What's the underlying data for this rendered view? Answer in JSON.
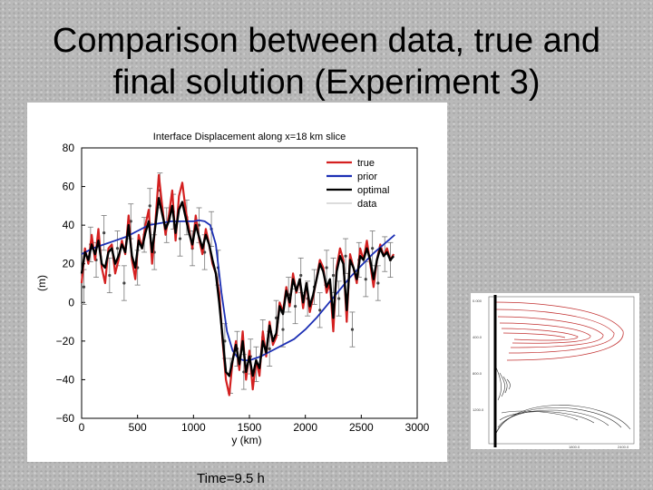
{
  "slide": {
    "title_line1": "Comparison between data, true and",
    "title_line2": "final solution (Experiment 3)",
    "time_label": "Time=9.5 h"
  },
  "chart_data": {
    "type": "line",
    "title": "Interface Displacement along x=18 km slice",
    "xlabel": "y (km)",
    "ylabel": "(m)",
    "xlim": [
      0,
      3000
    ],
    "ylim": [
      -60,
      80
    ],
    "xticks": [
      "0",
      "500",
      "1000",
      "1500",
      "2000",
      "2500",
      "3000"
    ],
    "yticks": [
      "80",
      "60",
      "40",
      "20",
      "0",
      "−20",
      "−40",
      "−60"
    ],
    "legend_position": "top-right",
    "series": [
      {
        "name": "true",
        "color": "#d42020",
        "x": [
          0,
          30,
          60,
          90,
          120,
          150,
          180,
          210,
          240,
          270,
          300,
          330,
          360,
          390,
          420,
          450,
          480,
          510,
          540,
          570,
          600,
          630,
          660,
          690,
          720,
          750,
          780,
          810,
          840,
          870,
          900,
          930,
          960,
          990,
          1020,
          1050,
          1080,
          1110,
          1140,
          1170,
          1200,
          1230,
          1260,
          1290,
          1320,
          1350,
          1380,
          1410,
          1440,
          1470,
          1500,
          1530,
          1560,
          1590,
          1620,
          1650,
          1680,
          1710,
          1740,
          1770,
          1800,
          1830,
          1860,
          1890,
          1920,
          1950,
          1980,
          2010,
          2040,
          2070,
          2100,
          2130,
          2160,
          2190,
          2220,
          2250,
          2280,
          2310,
          2340,
          2370,
          2400,
          2430,
          2460,
          2490,
          2520,
          2550,
          2580,
          2610,
          2640,
          2670,
          2700,
          2730,
          2760,
          2790
        ],
        "values": [
          10,
          28,
          20,
          35,
          22,
          38,
          18,
          10,
          28,
          30,
          15,
          22,
          32,
          25,
          45,
          22,
          12,
          35,
          28,
          40,
          48,
          20,
          42,
          66,
          50,
          35,
          45,
          58,
          32,
          55,
          62,
          48,
          38,
          28,
          45,
          33,
          25,
          38,
          30,
          20,
          15,
          5,
          -20,
          -40,
          -48,
          -30,
          -20,
          -35,
          -15,
          -40,
          -25,
          -45,
          -30,
          -38,
          -15,
          -28,
          -10,
          -22,
          -18,
          0,
          -5,
          8,
          -2,
          15,
          5,
          12,
          -3,
          10,
          -5,
          3,
          12,
          22,
          18,
          5,
          10,
          -15,
          18,
          28,
          22,
          -10,
          25,
          18,
          10,
          28,
          22,
          32,
          20,
          8,
          22,
          30,
          24,
          28,
          22,
          25
        ]
      },
      {
        "name": "prior",
        "color": "#1c2fb4",
        "x": [
          0,
          100,
          200,
          300,
          400,
          500,
          600,
          700,
          800,
          900,
          1000,
          1050,
          1100,
          1150,
          1200,
          1250,
          1300,
          1350,
          1400,
          1450,
          1500,
          1600,
          1700,
          1800,
          1900,
          2000,
          2100,
          2200,
          2300,
          2400,
          2500,
          2600,
          2700,
          2800
        ],
        "values": [
          25,
          28,
          30,
          32,
          34,
          37,
          40,
          41,
          42,
          42,
          42,
          42.5,
          42,
          40,
          30,
          5,
          -15,
          -25,
          -29,
          -30,
          -30,
          -28,
          -25,
          -22,
          -19,
          -14,
          -8,
          -1,
          6,
          13,
          19,
          25,
          30,
          35
        ]
      },
      {
        "name": "optimal",
        "color": "#000000",
        "x": [
          0,
          30,
          60,
          90,
          120,
          150,
          180,
          210,
          240,
          270,
          300,
          330,
          360,
          390,
          420,
          450,
          480,
          510,
          540,
          570,
          600,
          630,
          660,
          690,
          720,
          750,
          780,
          810,
          840,
          870,
          900,
          930,
          960,
          990,
          1020,
          1050,
          1080,
          1110,
          1140,
          1170,
          1200,
          1230,
          1260,
          1290,
          1320,
          1350,
          1380,
          1410,
          1440,
          1470,
          1500,
          1530,
          1560,
          1590,
          1620,
          1650,
          1680,
          1710,
          1740,
          1770,
          1800,
          1830,
          1860,
          1890,
          1920,
          1950,
          1980,
          2010,
          2040,
          2070,
          2100,
          2130,
          2160,
          2190,
          2220,
          2250,
          2280,
          2310,
          2340,
          2370,
          2400,
          2430,
          2460,
          2490,
          2520,
          2550,
          2580,
          2610,
          2640,
          2670,
          2700,
          2730,
          2760,
          2790
        ],
        "values": [
          15,
          26,
          22,
          30,
          25,
          32,
          20,
          18,
          26,
          28,
          20,
          24,
          30,
          26,
          40,
          24,
          18,
          32,
          28,
          36,
          42,
          26,
          40,
          54,
          46,
          38,
          42,
          50,
          36,
          48,
          52,
          44,
          36,
          30,
          40,
          34,
          28,
          35,
          30,
          22,
          15,
          0,
          -18,
          -36,
          -38,
          -30,
          -22,
          -32,
          -20,
          -36,
          -28,
          -38,
          -30,
          -34,
          -20,
          -26,
          -12,
          -20,
          -16,
          -2,
          -6,
          6,
          0,
          12,
          6,
          12,
          0,
          10,
          -2,
          4,
          12,
          20,
          16,
          8,
          12,
          -8,
          16,
          24,
          20,
          -4,
          22,
          18,
          12,
          24,
          22,
          28,
          22,
          12,
          22,
          28,
          24,
          26,
          22,
          24
        ]
      },
      {
        "name": "data",
        "color": "#a0a0a0",
        "x": [
          20,
          80,
          130,
          200,
          250,
          320,
          380,
          440,
          500,
          560,
          610,
          650,
          700,
          760,
          820,
          880,
          940,
          990,
          1050,
          1100,
          1160,
          1220,
          1280,
          1330,
          1390,
          1450,
          1510,
          1560,
          1620,
          1680,
          1740,
          1800,
          1850,
          1910,
          1960,
          2020,
          2080,
          2130,
          2190,
          2250,
          2300,
          2360,
          2420,
          2480,
          2540,
          2600,
          2650,
          2710,
          2760
        ],
        "values": [
          8,
          30,
          22,
          36,
          14,
          28,
          10,
          42,
          18,
          35,
          50,
          26,
          58,
          40,
          47,
          33,
          44,
          28,
          40,
          26,
          38,
          18,
          -20,
          -38,
          -24,
          -36,
          -28,
          -32,
          -18,
          -24,
          -8,
          -14,
          4,
          -2,
          14,
          2,
          8,
          -4,
          18,
          14,
          2,
          24,
          -14,
          22,
          12,
          28,
          10,
          25,
          22
        ]
      }
    ]
  },
  "inset": {
    "tick_labels": [
      "0.000",
      "400.0",
      "800.0",
      "1200.0",
      "1800.0",
      "2400.0"
    ]
  }
}
